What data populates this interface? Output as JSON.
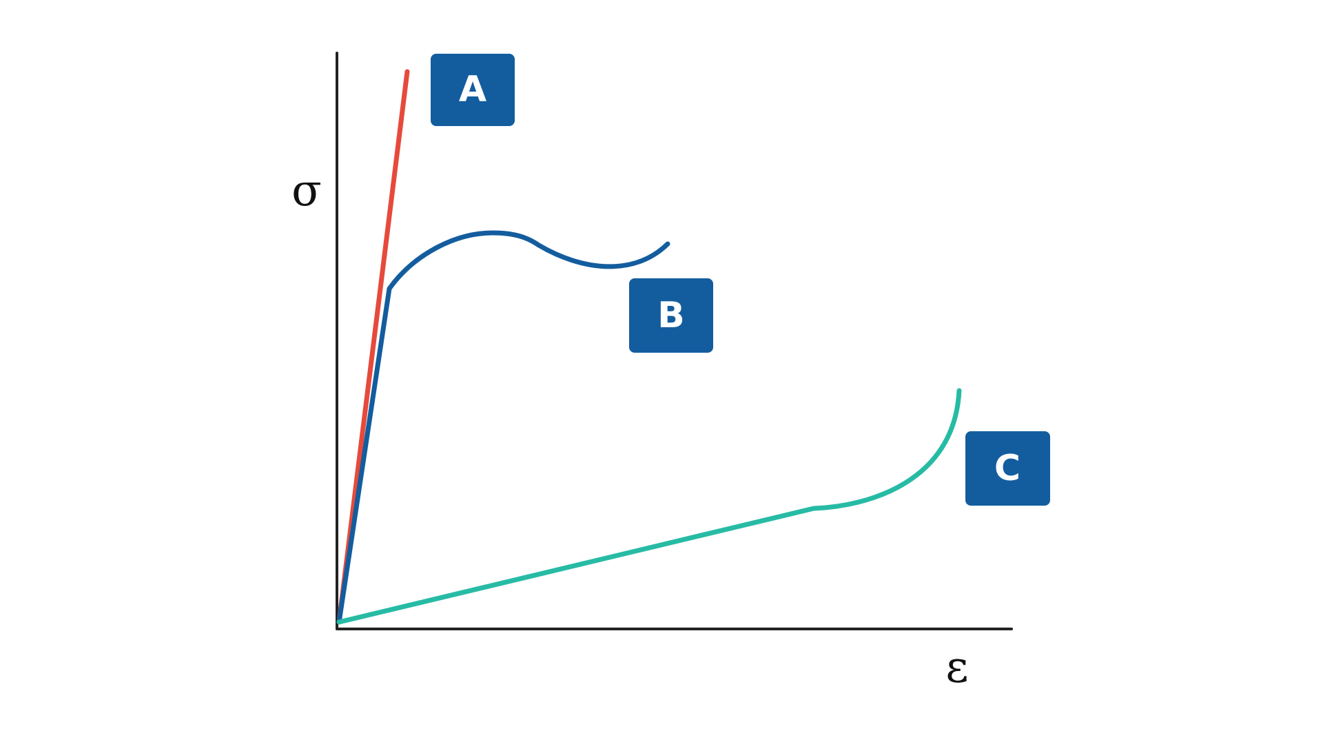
{
  "axes": {
    "y_label": "σ",
    "x_label": "ε"
  },
  "curves": [
    {
      "label": "A"
    },
    {
      "label": "B"
    },
    {
      "label": "C"
    }
  ]
}
